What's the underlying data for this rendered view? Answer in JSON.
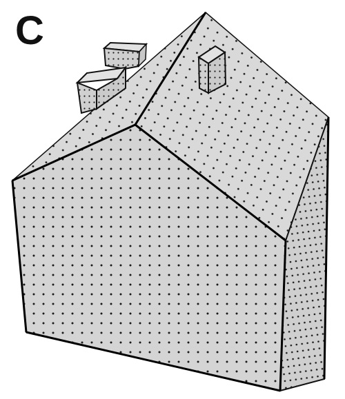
{
  "figure": {
    "panel_label": "C"
  },
  "colors": {
    "face": "#d4d4d4",
    "roof": "#d9d9d9",
    "side": "#cfcfcf",
    "edge": "#111111",
    "dot": "#1a1a1a"
  }
}
